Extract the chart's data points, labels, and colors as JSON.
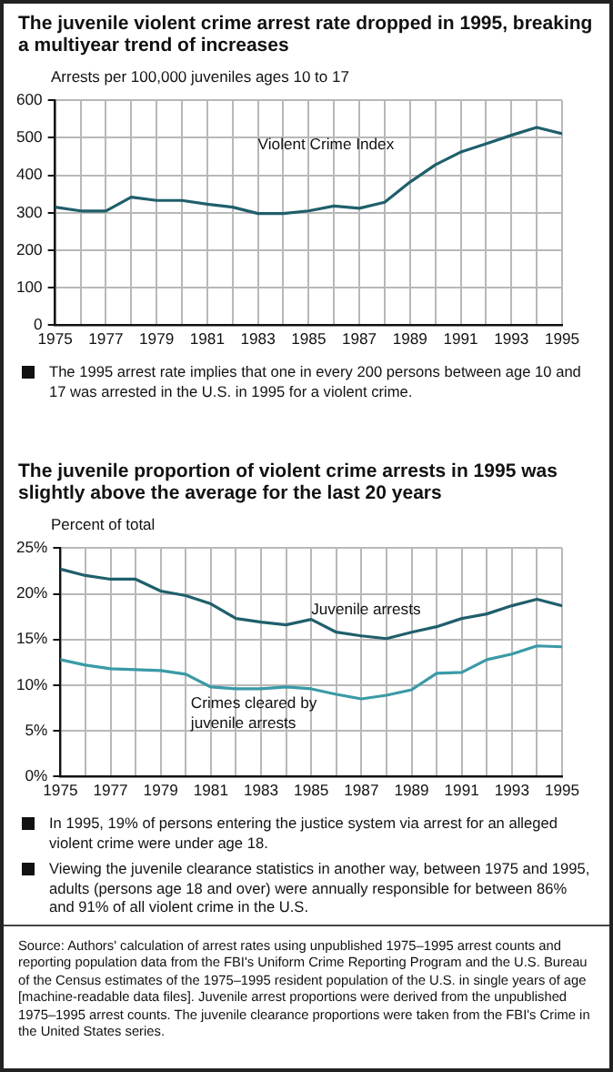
{
  "chart_data": [
    {
      "type": "line",
      "title": "The juvenile violent crime arrest rate dropped in 1995, breaking a multiyear trend of increases",
      "ylabel": "Arrests per 100,000 juveniles ages 10 to 17",
      "x": [
        1975,
        1976,
        1977,
        1978,
        1979,
        1980,
        1981,
        1982,
        1983,
        1984,
        1985,
        1986,
        1987,
        1988,
        1989,
        1990,
        1991,
        1992,
        1993,
        1994,
        1995
      ],
      "series": [
        {
          "name": "Violent Crime Index",
          "color": "#1f5f6b",
          "values": [
            315,
            305,
            305,
            342,
            333,
            333,
            323,
            315,
            298,
            298,
            305,
            318,
            312,
            328,
            382,
            428,
            462,
            484,
            507,
            528,
            511
          ]
        }
      ],
      "xlim": [
        1975,
        1995
      ],
      "xticks": [
        1975,
        {
          "value": 1976,
          "label": null
        },
        1977,
        {
          "value": 1978,
          "label": null
        },
        1979,
        {
          "value": 1980,
          "label": null
        },
        1981,
        {
          "value": 1982,
          "label": null
        },
        1983,
        {
          "value": 1984,
          "label": null
        },
        1985,
        {
          "value": 1986,
          "label": null
        },
        1987,
        {
          "value": 1988,
          "label": null
        },
        1989,
        {
          "value": 1990,
          "label": null
        },
        1991,
        {
          "value": 1992,
          "label": null
        },
        1993,
        {
          "value": 1994,
          "label": null
        },
        1995
      ],
      "ylim": [
        0,
        600
      ],
      "yticks": [
        0,
        100,
        200,
        300,
        400,
        500,
        600
      ],
      "grid": true,
      "legend": false,
      "marker": "none",
      "line_style": "solid",
      "annotations": [
        "The 1995 arrest rate implies that one in every 200 persons between age 10 and 17 was arrested in the U.S. in 1995 for a violent crime."
      ]
    },
    {
      "type": "line",
      "title": "The juvenile proportion of violent crime arrests in 1995 was slightly above the average for the last 20 years",
      "ylabel": "Percent of total",
      "x": [
        1975,
        1976,
        1977,
        1978,
        1979,
        1980,
        1981,
        1982,
        1983,
        1984,
        1985,
        1986,
        1987,
        1988,
        1989,
        1990,
        1991,
        1992,
        1993,
        1994,
        1995
      ],
      "series": [
        {
          "name": "Juvenile arrests",
          "color": "#1f5f6b",
          "values": [
            22.7,
            22.0,
            21.6,
            21.6,
            20.3,
            19.8,
            18.9,
            17.3,
            16.9,
            16.6,
            17.2,
            15.8,
            15.4,
            15.1,
            15.8,
            16.4,
            17.3,
            17.8,
            18.7,
            19.4,
            18.7
          ]
        },
        {
          "name": "Crimes cleared by juvenile arrests",
          "color": "#3a9aa6",
          "values": [
            12.8,
            12.2,
            11.8,
            11.7,
            11.6,
            11.2,
            9.8,
            9.6,
            9.6,
            9.8,
            9.6,
            9.0,
            8.5,
            8.9,
            9.5,
            11.3,
            11.4,
            12.8,
            13.4,
            14.3,
            14.2
          ]
        }
      ],
      "xlim": [
        1975,
        1995
      ],
      "xticks": [
        1975,
        {
          "value": 1976,
          "label": null
        },
        1977,
        {
          "value": 1978,
          "label": null
        },
        1979,
        {
          "value": 1980,
          "label": null
        },
        1981,
        {
          "value": 1982,
          "label": null
        },
        1983,
        {
          "value": 1984,
          "label": null
        },
        1985,
        {
          "value": 1986,
          "label": null
        },
        1987,
        {
          "value": 1988,
          "label": null
        },
        1989,
        {
          "value": 1990,
          "label": null
        },
        1991,
        {
          "value": 1992,
          "label": null
        },
        1993,
        {
          "value": 1994,
          "label": null
        },
        1995
      ],
      "ylim": [
        0,
        25
      ],
      "yticks": [
        {
          "value": 0,
          "label": "0%"
        },
        {
          "value": 5,
          "label": "5%"
        },
        {
          "value": 10,
          "label": "10%"
        },
        {
          "value": 15,
          "label": "15%"
        },
        {
          "value": 20,
          "label": "20%"
        },
        {
          "value": 25,
          "label": "25%"
        }
      ],
      "grid": true,
      "legend": false,
      "marker": "none",
      "line_style": "solid",
      "annotations": [
        "In 1995, 19% of persons entering the justice system via arrest for an alleged violent crime were under age 18.",
        "Viewing the juvenile clearance statistics in another way, between 1975 and 1995, adults (persons age 18 and over) were annually responsible for between 86% and 91% of all violent crime in the U.S.",
        "Source: Authors' calculation of arrest rates using unpublished 1975–1995 arrest counts and reporting population data from the FBI's Uniform Crime Reporting Program and the U.S. Bureau of the Census estimates of the 1975–1995 resident population of the U.S. in single years of age [machine-readable data files]. Juvenile arrest proportions were derived from the unpublished 1975–1995 arrest counts. The juvenile clearance proportions were taken from the FBI's Crime in the United States series."
      ]
    }
  ]
}
